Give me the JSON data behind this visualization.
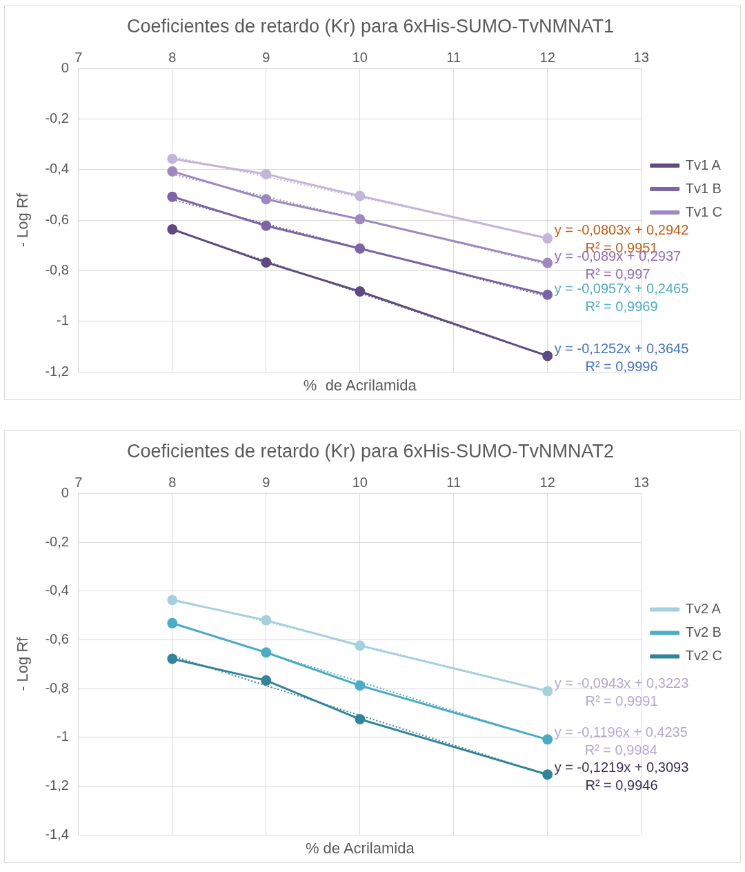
{
  "chart_data": [
    {
      "type": "line",
      "title": "Coeficientes de retardo (Kr) para 6xHis-SUMO-TvNMNAT1",
      "xlabel": "%  de Acrilamida",
      "ylabel": "- Log Rf",
      "x": [
        8,
        9,
        10,
        12
      ],
      "series": [
        {
          "name": "Tv1 A",
          "color": "#5e4b80",
          "values": [
            -0.636,
            -0.767,
            -0.882,
            -1.137
          ]
        },
        {
          "name": "Tv1 B",
          "color": "#7b64a8",
          "values": [
            -0.507,
            -0.622,
            -0.712,
            -0.895
          ]
        },
        {
          "name": "Tv1 C",
          "color": "#9d89c0",
          "values": [
            -0.407,
            -0.517,
            -0.596,
            -0.769
          ]
        },
        {
          "color": "#c3b6d8",
          "values": [
            -0.357,
            -0.418,
            -0.504,
            -0.672
          ]
        },
        {
          "type": "line",
          "line_style": "dotted",
          "marker": "none",
          "color": "#c3b6d8",
          "values": [
            -0.348,
            null,
            null,
            -0.669
          ]
        },
        {
          "type": "line",
          "line_style": "dotted",
          "marker": "none",
          "color": "#9d89c0",
          "values": [
            -0.418,
            null,
            null,
            -0.774
          ]
        },
        {
          "type": "line",
          "line_style": "dotted",
          "marker": "none",
          "color": "#7b64a8",
          "values": [
            -0.519,
            null,
            null,
            -0.902
          ]
        },
        {
          "type": "line",
          "line_style": "dotted",
          "marker": "none",
          "color": "#5e4b80",
          "values": [
            -0.637,
            null,
            null,
            -1.138
          ]
        }
      ],
      "xlim": [
        7,
        13
      ],
      "xticks": [
        7,
        8,
        9,
        10,
        11,
        12,
        13
      ],
      "ylim": [
        -1.2,
        0
      ],
      "yticks": [
        {
          "value": 0,
          "label": "0"
        },
        {
          "value": -0.2,
          "label": "-0,2"
        },
        {
          "value": -0.4,
          "label": "-0,4"
        },
        {
          "value": -0.6,
          "label": "-0,6"
        },
        {
          "value": -0.8,
          "label": "-0,8"
        },
        {
          "value": -1,
          "label": "-1"
        },
        {
          "value": -1.2,
          "label": "-1,2"
        }
      ],
      "grid": true,
      "legend": "right",
      "marker": "circle",
      "line_style": "solid",
      "annotations": [
        "y = -0,0803x + 0,2942\nR² = 0,9951",
        "y = -0,089x + 0,2937\nR² = 0,997",
        "y = -0,0957x + 0,2465\nR² = 0,9969",
        "y = -0,1252x + 0,3645\nR² = 0,9996"
      ]
    },
    {
      "type": "line",
      "title": "Coeficientes de retardo (Kr) para 6xHis-SUMO-TvNMNAT2",
      "xlabel": "% de Acrilamida",
      "ylabel": "- Log Rf",
      "x": [
        8,
        9,
        10,
        12
      ],
      "series": [
        {
          "name": "Tv2 A",
          "color": "#a5d0de",
          "values": [
            -0.437,
            -0.52,
            -0.624,
            -0.811
          ]
        },
        {
          "name": "Tv2 B",
          "color": "#4bacc6",
          "values": [
            -0.532,
            -0.652,
            -0.788,
            -1.009
          ]
        },
        {
          "name": "Tv2 C",
          "color": "#31849b",
          "values": [
            -0.678,
            -0.767,
            -0.926,
            -1.153
          ]
        },
        {
          "type": "line",
          "line_style": "dotted",
          "marker": "none",
          "color": "#a5d0de",
          "values": [
            -0.432,
            null,
            null,
            -0.809
          ]
        },
        {
          "type": "line",
          "line_style": "dotted",
          "marker": "none",
          "color": "#4bacc6",
          "values": [
            -0.533,
            null,
            null,
            -1.012
          ]
        },
        {
          "type": "line",
          "line_style": "dotted",
          "marker": "none",
          "color": "#31849b",
          "values": [
            -0.666,
            null,
            null,
            -1.154
          ]
        }
      ],
      "xlim": [
        7,
        13
      ],
      "xticks": [
        7,
        8,
        9,
        10,
        11,
        12,
        13
      ],
      "ylim": [
        -1.4,
        0
      ],
      "yticks": [
        {
          "value": 0,
          "label": "0"
        },
        {
          "value": -0.2,
          "label": "-0,2"
        },
        {
          "value": -0.4,
          "label": "-0,4"
        },
        {
          "value": -0.6,
          "label": "-0,6"
        },
        {
          "value": -0.8,
          "label": "-0,8"
        },
        {
          "value": -1,
          "label": "-1"
        },
        {
          "value": -1.2,
          "label": "-1,2"
        },
        {
          "value": -1.4,
          "label": "-1,4"
        }
      ],
      "grid": true,
      "legend": "right",
      "marker": "circle",
      "line_style": "solid",
      "annotations": [
        "y = -0,0943x + 0,3223\nR² = 0,9991",
        "y = -0,1196x + 0,4235\nR² = 0,9984",
        "y = -0,1219x + 0,3093\nR² = 0,9946"
      ]
    }
  ]
}
